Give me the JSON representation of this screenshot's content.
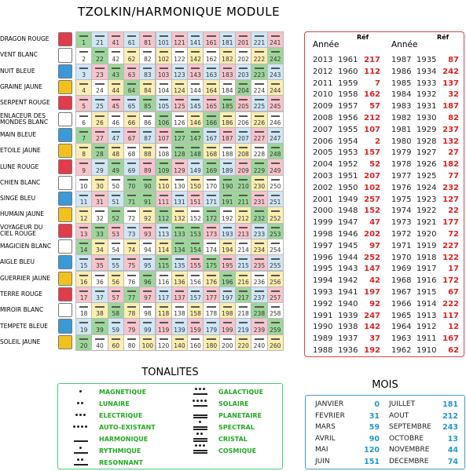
{
  "title": "TZOLKIN/HARMONIQUE MODULE",
  "seals": [
    "DRAGON ROUGE",
    "VENT BLANC",
    "NUIT BLEUE",
    "GRAINE JAUNE",
    "SERPENT ROUGE",
    "ENLACEUR DES MONDES BLANC",
    "MAIN BLEUE",
    "ETOILE JAUNE",
    "LUNE ROUGE",
    "CHIEN BLANC",
    "SINGE BLEU",
    "HUMAIN JAUNE",
    "VOYAGEUR DU CIEL ROUGE",
    "MAGICIEN BLANC",
    "AIGLE BLEU",
    "GUERRIER JAUNE",
    "TERRE ROUGE",
    "MIROIR BLANC",
    "TEMPETE BLEUE",
    "SOLEIL JAUNE"
  ],
  "tzolkin": {
    "rows": [
      [
        1,
        21,
        41,
        61,
        81,
        101,
        121,
        141,
        161,
        181,
        201,
        221,
        241
      ],
      [
        2,
        22,
        42,
        62,
        82,
        102,
        122,
        142,
        162,
        182,
        202,
        222,
        242
      ],
      [
        3,
        23,
        43,
        63,
        83,
        103,
        123,
        143,
        163,
        183,
        203,
        223,
        243
      ],
      [
        4,
        24,
        44,
        64,
        84,
        104,
        124,
        144,
        164,
        184,
        204,
        224,
        244
      ],
      [
        5,
        25,
        45,
        65,
        85,
        105,
        125,
        145,
        165,
        185,
        205,
        225,
        245
      ],
      [
        6,
        26,
        46,
        66,
        86,
        106,
        126,
        146,
        166,
        186,
        206,
        226,
        246
      ],
      [
        7,
        27,
        47,
        67,
        87,
        107,
        127,
        147,
        167,
        187,
        207,
        227,
        247
      ],
      [
        8,
        28,
        48,
        68,
        88,
        108,
        128,
        148,
        168,
        188,
        208,
        228,
        248
      ],
      [
        9,
        29,
        49,
        69,
        89,
        109,
        129,
        149,
        169,
        189,
        209,
        229,
        249
      ],
      [
        10,
        30,
        50,
        70,
        90,
        110,
        130,
        150,
        170,
        190,
        210,
        230,
        250
      ],
      [
        11,
        31,
        51,
        71,
        91,
        111,
        131,
        151,
        171,
        191,
        211,
        231,
        251
      ],
      [
        12,
        32,
        52,
        72,
        92,
        112,
        132,
        152,
        172,
        192,
        212,
        232,
        252
      ],
      [
        13,
        33,
        53,
        73,
        93,
        113,
        133,
        153,
        173,
        193,
        213,
        233,
        253
      ],
      [
        14,
        34,
        54,
        74,
        94,
        114,
        134,
        154,
        174,
        194,
        214,
        234,
        254
      ],
      [
        15,
        35,
        55,
        75,
        95,
        115,
        135,
        155,
        175,
        195,
        215,
        235,
        255
      ],
      [
        16,
        36,
        56,
        76,
        96,
        116,
        136,
        156,
        176,
        196,
        216,
        236,
        256
      ],
      [
        17,
        37,
        57,
        77,
        97,
        117,
        137,
        157,
        177,
        197,
        217,
        237,
        257
      ],
      [
        18,
        38,
        58,
        78,
        98,
        118,
        138,
        158,
        178,
        198,
        218,
        238,
        258
      ],
      [
        19,
        39,
        59,
        79,
        99,
        119,
        139,
        159,
        179,
        199,
        219,
        239,
        259
      ],
      [
        20,
        40,
        60,
        80,
        100,
        120,
        140,
        160,
        180,
        200,
        220,
        240,
        260
      ]
    ]
  },
  "years": {
    "headers": [
      "Année",
      "Réf",
      "Année",
      "Réf"
    ],
    "rows": [
      [
        2013,
        1961,
        217,
        1987,
        1935,
        87
      ],
      [
        2012,
        1960,
        112,
        1986,
        1934,
        242
      ],
      [
        2011,
        1959,
        7,
        1985,
        1933,
        137
      ],
      [
        2010,
        1958,
        162,
        1984,
        1932,
        32
      ],
      [
        2009,
        1957,
        57,
        1983,
        1931,
        187
      ],
      [
        2008,
        1956,
        212,
        1982,
        1930,
        82
      ],
      [
        2007,
        1955,
        107,
        1981,
        1929,
        237
      ],
      [
        2006,
        1954,
        2,
        1980,
        1928,
        132
      ],
      [
        2005,
        1953,
        157,
        1979,
        1927,
        27
      ],
      [
        2004,
        1952,
        52,
        1978,
        1926,
        182
      ],
      [
        2003,
        1951,
        207,
        1977,
        1925,
        77
      ],
      [
        2002,
        1950,
        102,
        1976,
        1924,
        232
      ],
      [
        2001,
        1949,
        257,
        1975,
        1923,
        127
      ],
      [
        2000,
        1948,
        152,
        1974,
        1922,
        22
      ],
      [
        1999,
        1947,
        47,
        1973,
        1921,
        177
      ],
      [
        1998,
        1946,
        202,
        1972,
        1920,
        72
      ],
      [
        1997,
        1945,
        97,
        1971,
        1919,
        227
      ],
      [
        1996,
        1944,
        252,
        1970,
        1918,
        122
      ],
      [
        1995,
        1943,
        147,
        1969,
        1917,
        17
      ],
      [
        1994,
        1942,
        42,
        1968,
        1916,
        172
      ],
      [
        1993,
        1941,
        197,
        1967,
        1915,
        67
      ],
      [
        1992,
        1940,
        92,
        1966,
        1914,
        222
      ],
      [
        1991,
        1939,
        247,
        1965,
        1913,
        117
      ],
      [
        1990,
        1938,
        142,
        1964,
        1912,
        12
      ],
      [
        1989,
        1937,
        37,
        1963,
        1911,
        167
      ],
      [
        1988,
        1936,
        192,
        1962,
        1910,
        62
      ]
    ]
  },
  "tonalites": {
    "title": "TONALITES",
    "items": [
      {
        "tone": 1,
        "name": "MAGNETIQUE"
      },
      {
        "tone": 2,
        "name": "LUNAIRE"
      },
      {
        "tone": 3,
        "name": "ELECTRIQUE"
      },
      {
        "tone": 4,
        "name": "AUTO-EXISTANT"
      },
      {
        "tone": 5,
        "name": "HARMONIQUE"
      },
      {
        "tone": 6,
        "name": "RYTHMIQUE"
      },
      {
        "tone": 7,
        "name": "RESONNANT"
      },
      {
        "tone": 8,
        "name": "GALACTIQUE"
      },
      {
        "tone": 9,
        "name": "SOLAIRE"
      },
      {
        "tone": 10,
        "name": "PLANETAIRE"
      },
      {
        "tone": 11,
        "name": "SPECTRAL"
      },
      {
        "tone": 12,
        "name": "CRISTAL"
      },
      {
        "tone": 13,
        "name": "COSMIQUE"
      }
    ]
  },
  "mois": {
    "title": "MOIS",
    "rows": [
      [
        "JANVIER",
        0,
        "JUILLET",
        181
      ],
      [
        "FEVRIER",
        31,
        "AOUT",
        212
      ],
      [
        "MARS",
        59,
        "SEPTEMBRE",
        243
      ],
      [
        "AVRIL",
        90,
        "OCTOBRE",
        13
      ],
      [
        "MAI",
        120,
        "NOVEMBRE",
        44
      ],
      [
        "JUIN",
        151,
        "DECEMBRE",
        74
      ]
    ]
  }
}
